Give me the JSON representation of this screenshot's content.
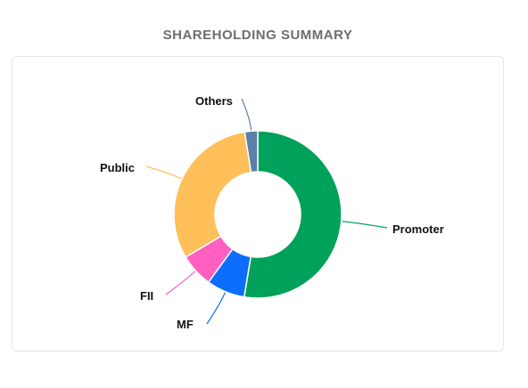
{
  "title": "SHAREHOLDING SUMMARY",
  "chart_data": {
    "type": "pie",
    "variant": "donut",
    "title": "SHAREHOLDING SUMMARY",
    "categories": [
      "Promoter",
      "MF",
      "FII",
      "Public",
      "Others"
    ],
    "values": [
      52.6,
      7.4,
      6.5,
      31.0,
      2.5
    ],
    "colors": [
      "#00a15b",
      "#0d6efd",
      "#ff5fbf",
      "#ffbf59",
      "#5b7faa"
    ],
    "legend": "none",
    "labels": "outside-with-leader-lines"
  }
}
